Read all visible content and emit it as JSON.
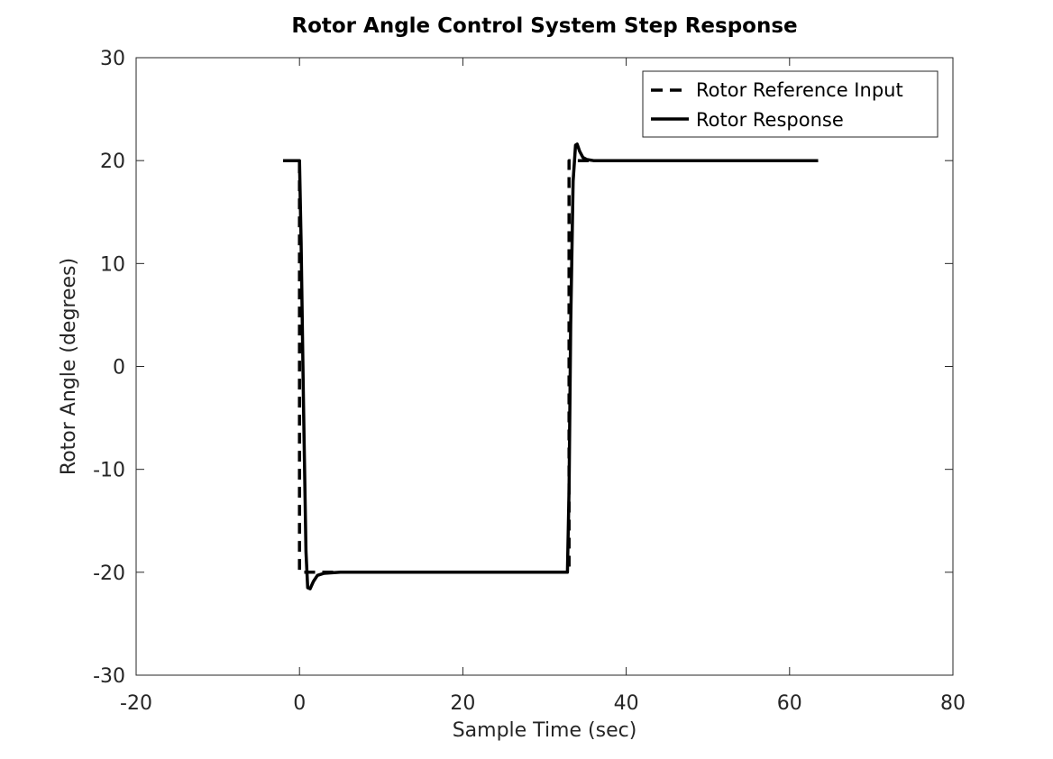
{
  "chart_data": {
    "type": "line",
    "title": "Rotor Angle Control System Step Response",
    "xlabel": "Sample Time (sec)",
    "ylabel": "Rotor Angle (degrees)",
    "xlim": [
      -20,
      80
    ],
    "ylim": [
      -30,
      30
    ],
    "xticks": [
      -20,
      0,
      20,
      40,
      60,
      80
    ],
    "yticks": [
      -30,
      -20,
      -10,
      0,
      10,
      20,
      30
    ],
    "grid": false,
    "legend_position": "top-right",
    "series": [
      {
        "name": "Rotor Reference Input",
        "style": "dashed",
        "color": "#000000",
        "x": [
          -2,
          0,
          0,
          33,
          33,
          63.5
        ],
        "y": [
          20,
          20,
          -20,
          -20,
          20,
          20
        ]
      },
      {
        "name": "Rotor Response",
        "style": "solid",
        "color": "#000000",
        "x": [
          -2,
          0,
          0.2,
          0.5,
          0.8,
          1.0,
          1.3,
          1.7,
          2.2,
          3,
          5,
          10,
          20,
          32.8,
          33,
          33.2,
          33.5,
          33.8,
          34.0,
          34.3,
          34.7,
          35.2,
          36,
          40,
          50,
          63.5
        ],
        "y": [
          20,
          20,
          12,
          -4,
          -18,
          -21.5,
          -21.6,
          -20.9,
          -20.3,
          -20.1,
          -20,
          -20,
          -20,
          -20,
          -12,
          4,
          18,
          21.5,
          21.6,
          20.9,
          20.3,
          20.1,
          20,
          20,
          20,
          20
        ]
      }
    ]
  }
}
